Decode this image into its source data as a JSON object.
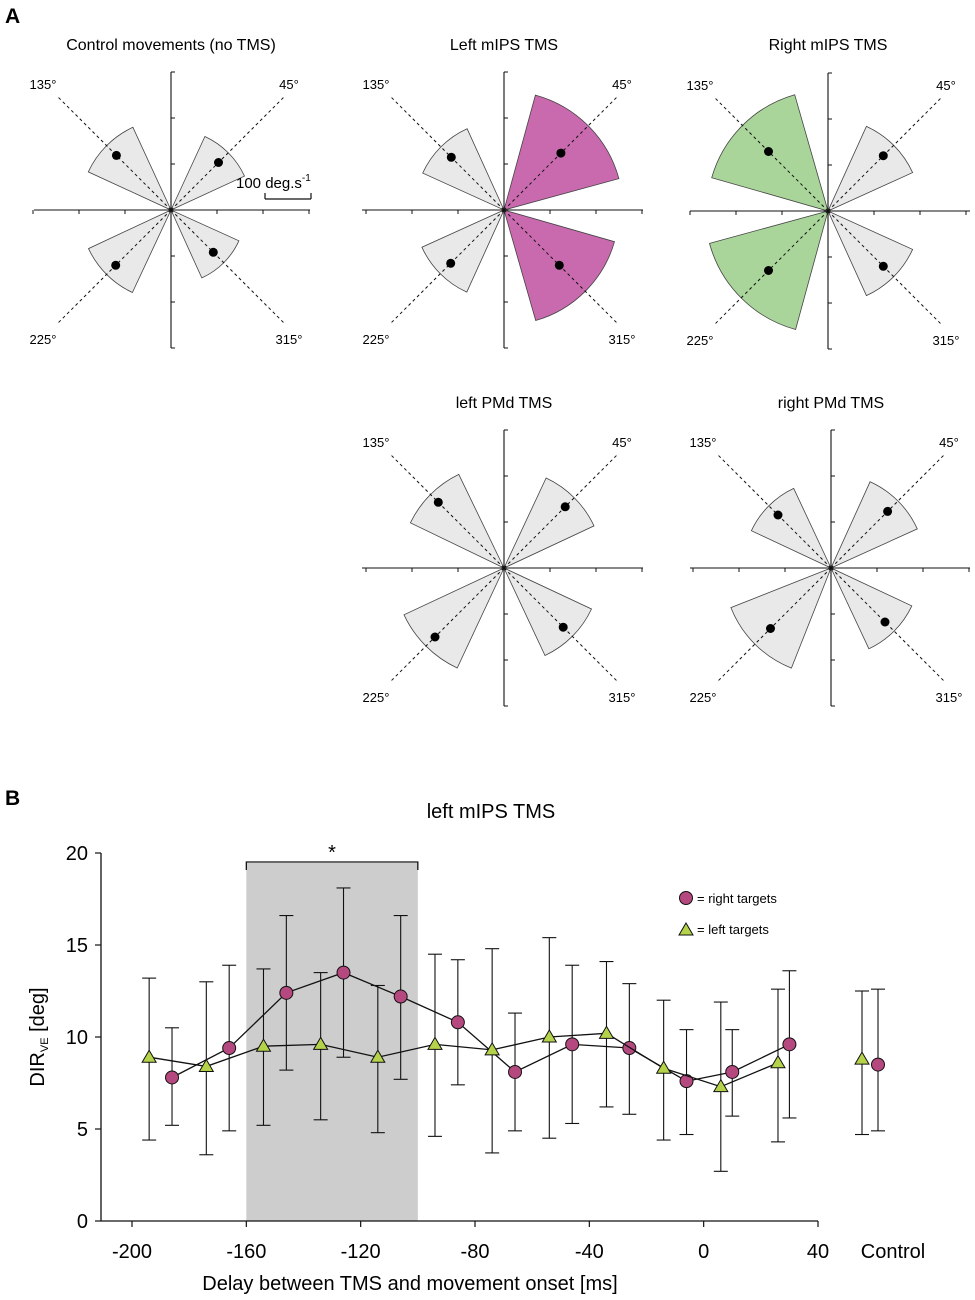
{
  "panel_a": {
    "label": "A",
    "scale_bar_label": "100 deg.s",
    "scale_bar_exponent": "-1",
    "scale_bar_value_deg_s": 100,
    "axis_max_deg_s": 300,
    "colors": {
      "neutral": "#e8e8e8",
      "mips_left": "#c96aae",
      "mips_right": "#a9d49a"
    },
    "plots": [
      {
        "title": "Control movements (no TMS)",
        "angle_labels": [
          "135°",
          "45°",
          "225°",
          "315°"
        ],
        "wedges": [
          {
            "dir": 45,
            "mean": 146,
            "err": 15,
            "color": "neutral"
          },
          {
            "dir": 135,
            "mean": 168,
            "err": 15,
            "color": "neutral"
          },
          {
            "dir": 225,
            "mean": 170,
            "err": 14,
            "color": "neutral"
          },
          {
            "dir": 315,
            "mean": 130,
            "err": 16,
            "color": "neutral"
          }
        ]
      },
      {
        "title": "Left mIPS TMS",
        "angle_labels": [
          "135°",
          "45°",
          "225°",
          "315°"
        ],
        "wedges": [
          {
            "dir": 45,
            "mean": 175,
            "err": 42,
            "color": "mips_left"
          },
          {
            "dir": 135,
            "mean": 162,
            "err": 16,
            "color": "neutral"
          },
          {
            "dir": 225,
            "mean": 164,
            "err": 16,
            "color": "neutral"
          },
          {
            "dir": 315,
            "mean": 170,
            "err": 40,
            "color": "mips_left"
          }
        ]
      },
      {
        "title": "Right mIPS TMS",
        "angle_labels": [
          "135°",
          "45°",
          "225°",
          "315°"
        ],
        "wedges": [
          {
            "dir": 45,
            "mean": 170,
            "err": 16,
            "color": "neutral"
          },
          {
            "dir": 135,
            "mean": 183,
            "err": 40,
            "color": "mips_right"
          },
          {
            "dir": 225,
            "mean": 183,
            "err": 42,
            "color": "mips_right"
          },
          {
            "dir": 315,
            "mean": 170,
            "err": 16,
            "color": "neutral"
          }
        ]
      },
      {
        "title": "left PMd TMS",
        "angle_labels": [
          "135°",
          "45°",
          "225°",
          "315°"
        ],
        "wedges": [
          {
            "dir": 45,
            "mean": 188,
            "err": 14,
            "color": "neutral"
          },
          {
            "dir": 135,
            "mean": 202,
            "err": 12,
            "color": "neutral"
          },
          {
            "dir": 225,
            "mean": 212,
            "err": 14,
            "color": "neutral"
          },
          {
            "dir": 315,
            "mean": 182,
            "err": 14,
            "color": "neutral"
          }
        ]
      },
      {
        "title": "right PMd TMS",
        "angle_labels": [
          "135°",
          "45°",
          "225°",
          "315°"
        ],
        "wedges": [
          {
            "dir": 45,
            "mean": 174,
            "err": 16,
            "color": "neutral"
          },
          {
            "dir": 135,
            "mean": 163,
            "err": 14,
            "color": "neutral"
          },
          {
            "dir": 225,
            "mean": 186,
            "err": 24,
            "color": "neutral"
          },
          {
            "dir": 315,
            "mean": 166,
            "err": 14,
            "color": "neutral"
          }
        ]
      }
    ]
  },
  "panel_b": {
    "label": "B",
    "title": "left mIPS TMS",
    "significance_marker": "*",
    "legend": {
      "right_targets": "= right targets",
      "left_targets": "= left targets"
    },
    "colors": {
      "right_targets": "#b5497f",
      "left_targets": "#b5d34a",
      "shade": "#cdcdcd"
    }
  },
  "chart_data": {
    "type": "line",
    "title": "left mIPS TMS",
    "xlabel": "Delay between TMS and movement onset [ms]",
    "ylabel": {
      "main": "DIR",
      "subscript": "VE",
      "unit": " [deg]"
    },
    "xlim": [
      -210,
      45
    ],
    "ylim": [
      0,
      20
    ],
    "xticks": [
      -200,
      -160,
      -120,
      -80,
      -40,
      0,
      40
    ],
    "xtick_labels": [
      "-200",
      "-160",
      "-120",
      "-80",
      "-40",
      "0",
      "40"
    ],
    "yticks": [
      0,
      5,
      10,
      15,
      20
    ],
    "ytick_labels": [
      "0",
      "5",
      "10",
      "15",
      "20"
    ],
    "control_label": "Control",
    "shaded_range_x": [
      -160,
      -100
    ],
    "shaded_label": "*",
    "series": [
      {
        "name": "right targets",
        "marker": "circle",
        "x": [
          -186,
          -166,
          -146,
          -126,
          -106,
          -86,
          -66,
          -46,
          -26,
          -6,
          10,
          30
        ],
        "y": [
          7.8,
          9.4,
          12.4,
          13.5,
          12.2,
          10.8,
          8.1,
          9.6,
          9.4,
          7.6,
          8.1,
          9.6
        ],
        "err_low": [
          5.2,
          4.9,
          8.2,
          8.9,
          7.7,
          7.4,
          4.9,
          5.3,
          5.8,
          4.7,
          5.7,
          5.6
        ],
        "err_high": [
          10.5,
          13.9,
          16.6,
          18.1,
          16.6,
          14.2,
          11.3,
          13.9,
          12.9,
          10.4,
          10.4,
          13.6
        ],
        "control": {
          "y": 8.5,
          "err_low": 4.9,
          "err_high": 12.6
        }
      },
      {
        "name": "left targets",
        "marker": "triangle",
        "x": [
          -194,
          -174,
          -154,
          -134,
          -114,
          -94,
          -74,
          -54,
          -34,
          -14,
          6,
          26
        ],
        "y": [
          8.9,
          8.4,
          9.5,
          9.6,
          8.9,
          9.6,
          9.3,
          10.0,
          10.2,
          8.3,
          7.3,
          8.6
        ],
        "err_low": [
          4.4,
          3.6,
          5.2,
          5.5,
          4.8,
          4.6,
          3.7,
          4.5,
          6.2,
          4.4,
          2.7,
          4.3
        ],
        "err_high": [
          13.2,
          13.0,
          13.7,
          13.5,
          12.8,
          14.5,
          14.8,
          15.4,
          14.1,
          12.0,
          11.9,
          12.6
        ],
        "control": {
          "y": 8.8,
          "err_low": 4.7,
          "err_high": 12.5
        }
      }
    ]
  }
}
